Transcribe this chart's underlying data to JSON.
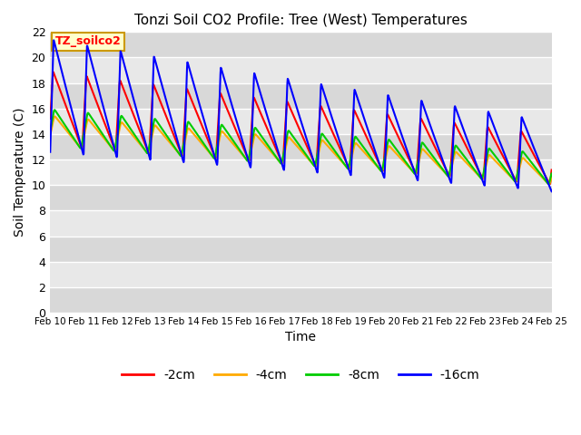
{
  "title": "Tonzi Soil CO2 Profile: Tree (West) Temperatures",
  "xlabel": "Time",
  "ylabel": "Soil Temperature (C)",
  "ylim": [
    0,
    22
  ],
  "yticks": [
    0,
    2,
    4,
    6,
    8,
    10,
    12,
    14,
    16,
    18,
    20,
    22
  ],
  "x_labels": [
    "Feb 10",
    "Feb 11",
    "Feb 12",
    "Feb 13",
    "Feb 14",
    "Feb 15",
    "Feb 16",
    "Feb 17",
    "Feb 18",
    "Feb 19",
    "Feb 20",
    "Feb 21",
    "Feb 22",
    "Feb 23",
    "Feb 24",
    "Feb 25"
  ],
  "series_labels": [
    "-2cm",
    "-4cm",
    "-8cm",
    "-16cm"
  ],
  "series_colors": [
    "#ff0000",
    "#ffaa00",
    "#00cc00",
    "#0000ff"
  ],
  "line_width": 1.5,
  "annotation_text": "TZ_soilco2",
  "annotation_bg": "#ffffcc",
  "annotation_fg": "#ff0000",
  "bg_color": "#e0e0e0",
  "grid_color": "#ffffff",
  "n_points": 1500
}
